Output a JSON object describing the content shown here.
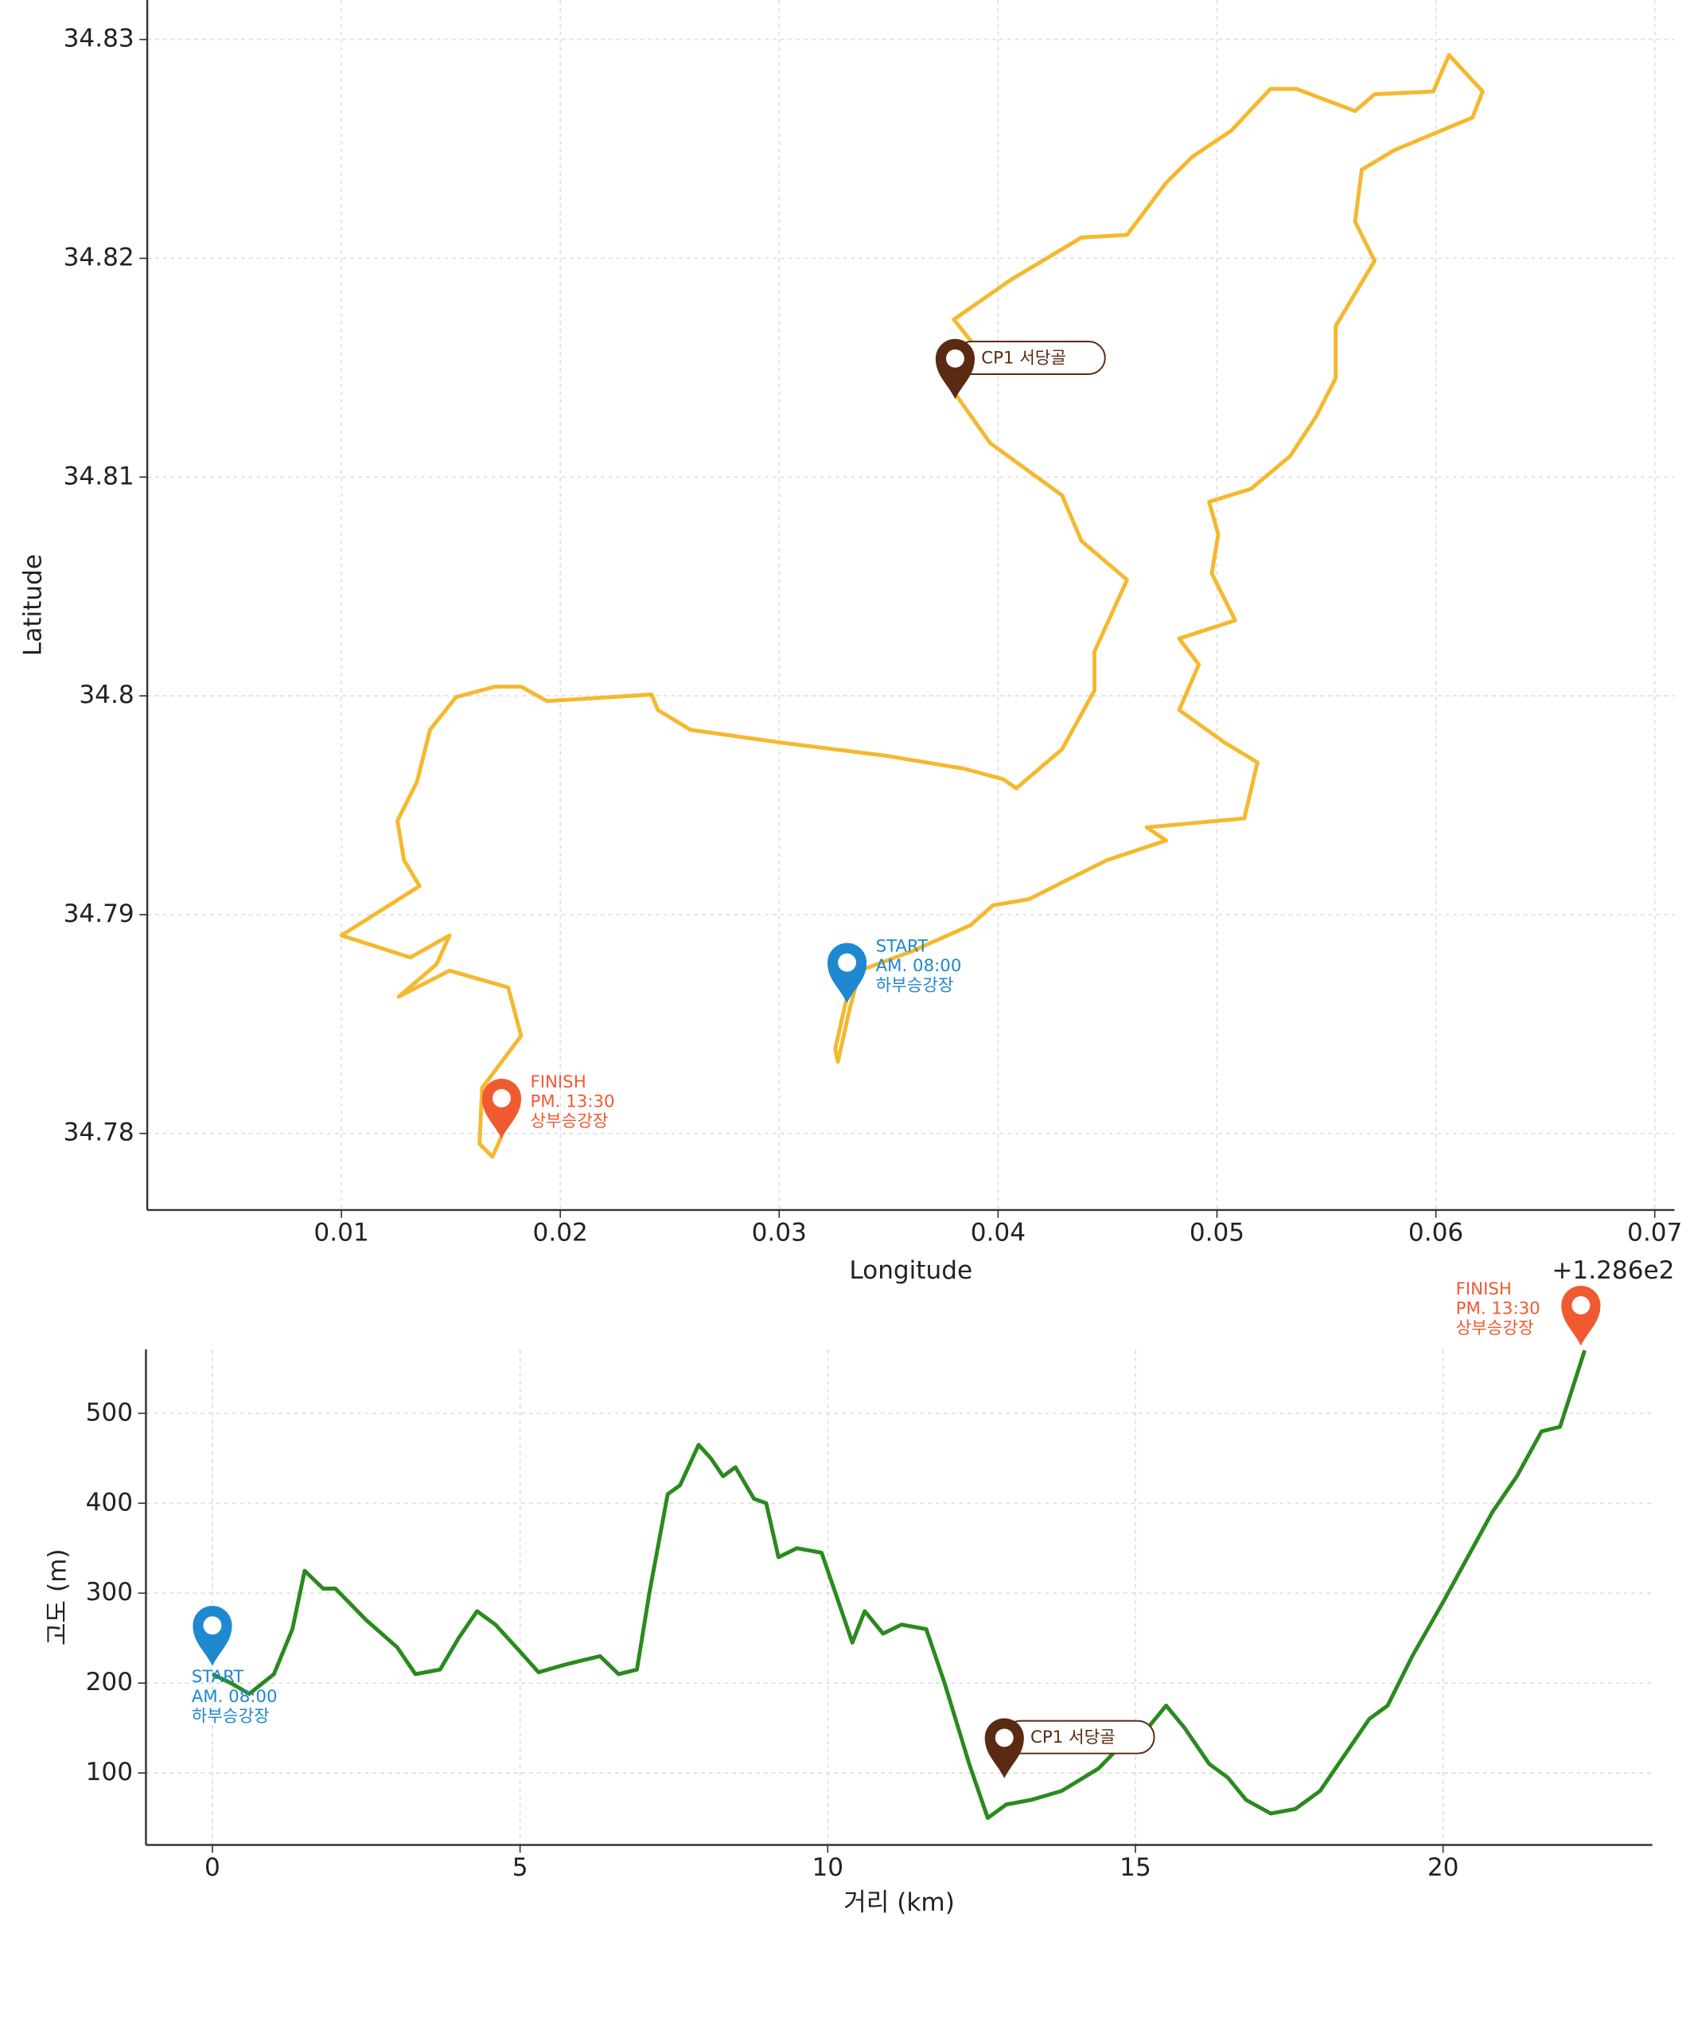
{
  "chart_data": [
    {
      "type": "line",
      "xlabel": "Longitude",
      "ylabel": "Latitude",
      "x_offset_label": "+1.286e2",
      "xlim": [
        0.00113,
        0.0709
      ],
      "ylim": [
        34.7765,
        34.8318
      ],
      "xticks": [
        0.01,
        0.02,
        0.03,
        0.04,
        0.05,
        0.06,
        0.07
      ],
      "yticks": [
        34.78,
        34.79,
        34.8,
        34.81,
        34.82,
        34.83
      ],
      "grid": true,
      "series": [
        {
          "name": "route",
          "color": "#f5b82e",
          "x": [
            0.0331,
            0.03256,
            0.03268,
            0.03321,
            0.03369,
            0.03607,
            0.03875,
            0.03976,
            0.04143,
            0.04321,
            0.045,
            0.04768,
            0.04679,
            0.05125,
            0.05185,
            0.05036,
            0.04827,
            0.04917,
            0.04827,
            0.05083,
            0.04976,
            0.05006,
            0.04964,
            0.05155,
            0.05333,
            0.05452,
            0.05542,
            0.05542,
            0.0572,
            0.05631,
            0.05661,
            0.0581,
            0.06167,
            0.06214,
            0.0606,
            0.05988,
            0.0572,
            0.05631,
            0.05363,
            0.05244,
            0.05065,
            0.04887,
            0.04768,
            0.04589,
            0.04381,
            0.04054,
            0.03798,
            0.03917,
            0.03804,
            0.03964,
            0.04292,
            0.04381,
            0.04589,
            0.0444,
            0.0444,
            0.04292,
            0.04083,
            0.04024,
            0.03845,
            0.03488,
            0.03012,
            0.02595,
            0.02446,
            0.02417,
            0.0194,
            0.01821,
            0.01702,
            0.01524,
            0.01405,
            0.01345,
            0.01256,
            0.01286,
            0.01357,
            0.01,
            0.01315,
            0.01494,
            0.01435,
            0.01262,
            0.01494,
            0.01762,
            0.01821,
            0.01643,
            0.01631,
            0.0169,
            0.01732
          ],
          "values": [
            34.78625,
            34.78387,
            34.78327,
            34.78565,
            34.78744,
            34.78833,
            34.78952,
            34.79042,
            34.79071,
            34.79161,
            34.7925,
            34.79339,
            34.79399,
            34.7944,
            34.79696,
            34.79786,
            34.79935,
            34.80143,
            34.80262,
            34.80345,
            34.8056,
            34.80738,
            34.80887,
            34.80946,
            34.81095,
            34.81274,
            34.81452,
            34.8169,
            34.81988,
            34.82167,
            34.82405,
            34.82494,
            34.82643,
            34.82762,
            34.82929,
            34.82762,
            34.8275,
            34.82673,
            34.82774,
            34.82774,
            34.82583,
            34.82464,
            34.82345,
            34.82107,
            34.82095,
            34.81899,
            34.8172,
            34.81571,
            34.81381,
            34.81155,
            34.80917,
            34.80708,
            34.8053,
            34.80202,
            34.80024,
            34.79756,
            34.79577,
            34.79619,
            34.79667,
            34.79726,
            34.79786,
            34.79845,
            34.79935,
            34.80006,
            34.79976,
            34.80042,
            34.80042,
            34.79994,
            34.79845,
            34.79607,
            34.79429,
            34.7925,
            34.79131,
            34.78905,
            34.78804,
            34.78905,
            34.78774,
            34.78625,
            34.78744,
            34.78667,
            34.78446,
            34.78208,
            34.77952,
            34.77893,
            34.77988
          ]
        }
      ],
      "annotations": [
        {
          "text": [
            "START",
            "AM. 08:00",
            "하부승강장"
          ],
          "x": 0.0331,
          "y": 34.7862,
          "color": "#1e88d0"
        },
        {
          "text": [
            "CP1 서당골"
          ],
          "x": 0.03804,
          "y": 34.81381,
          "color": "#5a2a12"
        },
        {
          "text": [
            "FINISH",
            "PM. 13:30",
            "상부승강장"
          ],
          "x": 0.01732,
          "y": 34.78,
          "color": "#f05a30"
        }
      ]
    },
    {
      "type": "line",
      "xlabel": "거리 (km)",
      "ylabel": "고도 (m)",
      "xlim": [
        -1.08,
        23.4
      ],
      "ylim": [
        20,
        571
      ],
      "xticks": [
        0,
        5,
        10,
        15,
        20
      ],
      "yticks": [
        100,
        200,
        300,
        400,
        500
      ],
      "grid": true,
      "series": [
        {
          "name": "elevation",
          "color": "#2a8a1e",
          "x": [
            0,
            0.3,
            0.6,
            1.0,
            1.3,
            1.5,
            1.8,
            2.0,
            2.5,
            3.0,
            3.3,
            3.7,
            4.0,
            4.3,
            4.6,
            5.0,
            5.3,
            5.7,
            6.0,
            6.3,
            6.6,
            6.9,
            7.1,
            7.4,
            7.6,
            7.9,
            8.1,
            8.3,
            8.5,
            8.8,
            9.0,
            9.2,
            9.5,
            9.9,
            10.2,
            10.4,
            10.6,
            10.9,
            11.2,
            11.6,
            11.9,
            12.3,
            12.6,
            12.9,
            13.3,
            13.8,
            14.4,
            14.9,
            15.2,
            15.5,
            15.8,
            16.2,
            16.5,
            16.8,
            17.2,
            17.6,
            18.0,
            18.4,
            18.8,
            19.1,
            19.5,
            20.0,
            20.4,
            20.8,
            21.2,
            21.6,
            21.9,
            22.3
          ],
          "values": [
            210,
            200,
            188,
            210,
            260,
            325,
            305,
            305,
            270,
            240,
            210,
            215,
            250,
            280,
            265,
            235,
            212,
            220,
            225,
            230,
            210,
            215,
            300,
            410,
            420,
            465,
            450,
            430,
            440,
            405,
            400,
            340,
            350,
            345,
            285,
            245,
            280,
            255,
            265,
            260,
            200,
            110,
            50,
            65,
            70,
            80,
            105,
            140,
            150,
            175,
            150,
            110,
            95,
            70,
            55,
            60,
            80,
            120,
            160,
            175,
            230,
            290,
            340,
            390,
            430,
            480,
            485,
            570
          ]
        }
      ],
      "annotations": [
        {
          "text": [
            "START",
            "AM. 08:00",
            "하부승강장"
          ],
          "x": 0,
          "y": 225,
          "color": "#1e88d0"
        },
        {
          "text": [
            "CP1 서당골"
          ],
          "x": 12.87,
          "y": 100,
          "color": "#5a2a12"
        },
        {
          "text": [
            "FINISH",
            "PM. 13:30",
            "상부승강장"
          ],
          "x": 22.24,
          "y": 581,
          "color": "#f05a30"
        }
      ]
    }
  ]
}
